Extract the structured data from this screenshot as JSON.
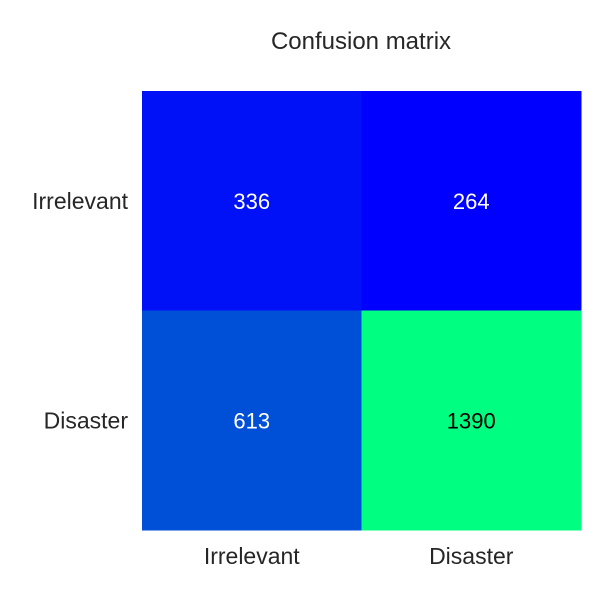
{
  "chart_data": {
    "type": "heatmap",
    "title": "Confusion matrix",
    "xlabel": "",
    "ylabel": "",
    "x_categories": [
      "Irrelevant",
      "Disaster"
    ],
    "y_categories": [
      "Irrelevant",
      "Disaster"
    ],
    "values": [
      [
        336,
        264
      ],
      [
        613,
        1390
      ]
    ],
    "colormap": "winter",
    "colormap_range": [
      264,
      1390
    ],
    "colors": {
      "low": "#0000ff",
      "high": "#00ff80",
      "text_light": "#ffffff",
      "text_dark": "#000000",
      "label": "#262626"
    },
    "grid": false
  }
}
